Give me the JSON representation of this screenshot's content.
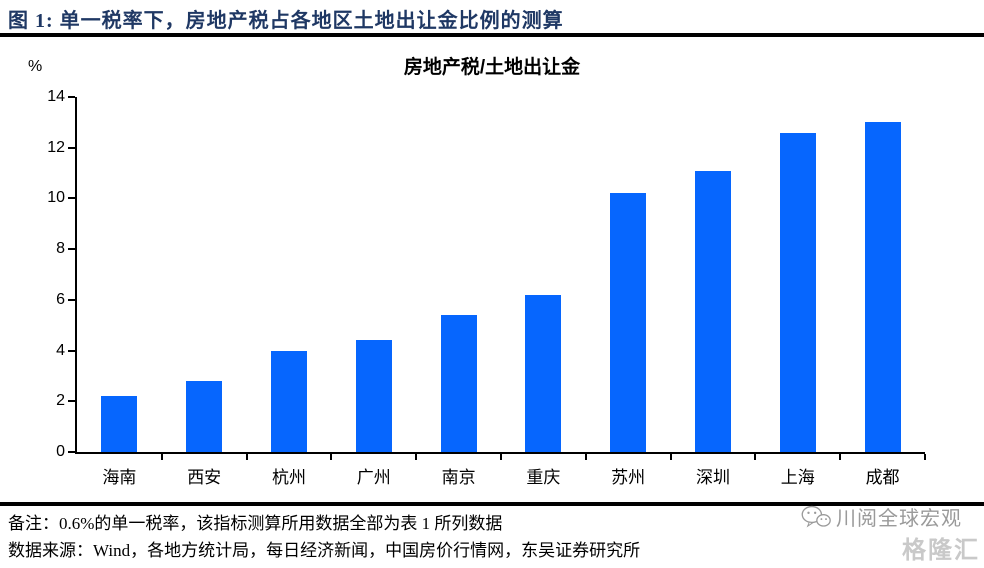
{
  "header": {
    "title": "图 1:  单一税率下，房地产税占各地区土地出让金比例的测算"
  },
  "chart_data": {
    "type": "bar",
    "title": "房地产税/土地出让金",
    "unit_label": "%",
    "categories": [
      "海南",
      "西安",
      "杭州",
      "广州",
      "南京",
      "重庆",
      "苏州",
      "深圳",
      "上海",
      "成都"
    ],
    "values": [
      2.2,
      2.8,
      4.0,
      4.4,
      5.4,
      6.2,
      10.2,
      11.1,
      12.6,
      13.0
    ],
    "ylim": [
      0,
      14
    ],
    "yticks": [
      0,
      2,
      4,
      6,
      8,
      10,
      12,
      14
    ],
    "xlabel": "",
    "ylabel": "%",
    "grid": false,
    "legend_position": "none",
    "bar_color": "#0666FE"
  },
  "footer": {
    "note": "备注：0.6%的单一税率，该指标测算所用数据全部为表 1 所列数据",
    "source": "数据来源：Wind，各地方统计局，每日经济新闻，中国房价行情网，东吴证券研究所",
    "watermark_account": "川阅全球宏观",
    "watermark_brand": "格隆汇"
  },
  "colors": {
    "header_text": "#1F3864",
    "bar": "#0666FE",
    "rule": "#000000",
    "watermark_account": "#9a9a9a",
    "watermark_brand": "#c9c9c9"
  }
}
